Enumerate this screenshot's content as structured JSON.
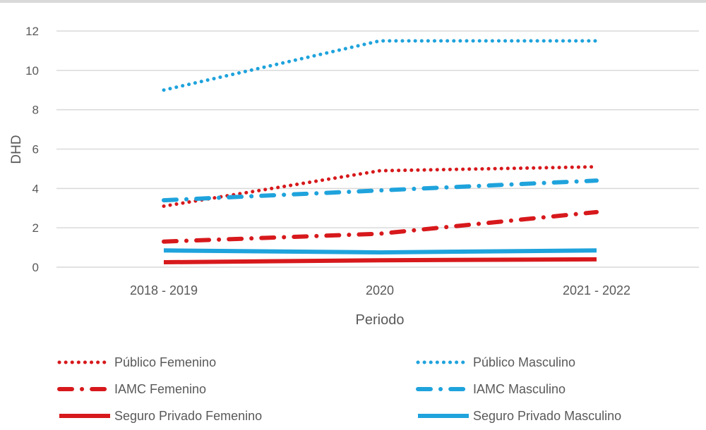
{
  "chart_data": {
    "type": "line",
    "title": "",
    "xlabel": "Periodo",
    "ylabel": "DHD",
    "categories": [
      "2018 - 2019",
      "2020",
      "2021 - 2022"
    ],
    "ylim": [
      0,
      12
    ],
    "yticks": [
      0,
      2,
      4,
      6,
      8,
      10,
      12
    ],
    "grid": true,
    "legend_position": "bottom",
    "series": [
      {
        "name": "Público Femenino",
        "values": [
          3.1,
          4.9,
          5.1
        ],
        "color": "#d7191c",
        "style": "dotted"
      },
      {
        "name": "Público Masculino",
        "values": [
          9.0,
          11.5,
          11.5
        ],
        "color": "#1fa3dc",
        "style": "dotted"
      },
      {
        "name": "IAMC Femenino",
        "values": [
          1.3,
          1.7,
          2.8
        ],
        "color": "#d7191c",
        "style": "dash-dot"
      },
      {
        "name": "IAMC Masculino",
        "values": [
          3.4,
          3.9,
          4.4
        ],
        "color": "#1fa3dc",
        "style": "dash-dot"
      },
      {
        "name": "Seguro Privado Femenino",
        "values": [
          0.25,
          0.35,
          0.4
        ],
        "color": "#d7191c",
        "style": "solid"
      },
      {
        "name": "Seguro Privado Masculino",
        "values": [
          0.85,
          0.75,
          0.85
        ],
        "color": "#1fa3dc",
        "style": "solid"
      }
    ]
  }
}
